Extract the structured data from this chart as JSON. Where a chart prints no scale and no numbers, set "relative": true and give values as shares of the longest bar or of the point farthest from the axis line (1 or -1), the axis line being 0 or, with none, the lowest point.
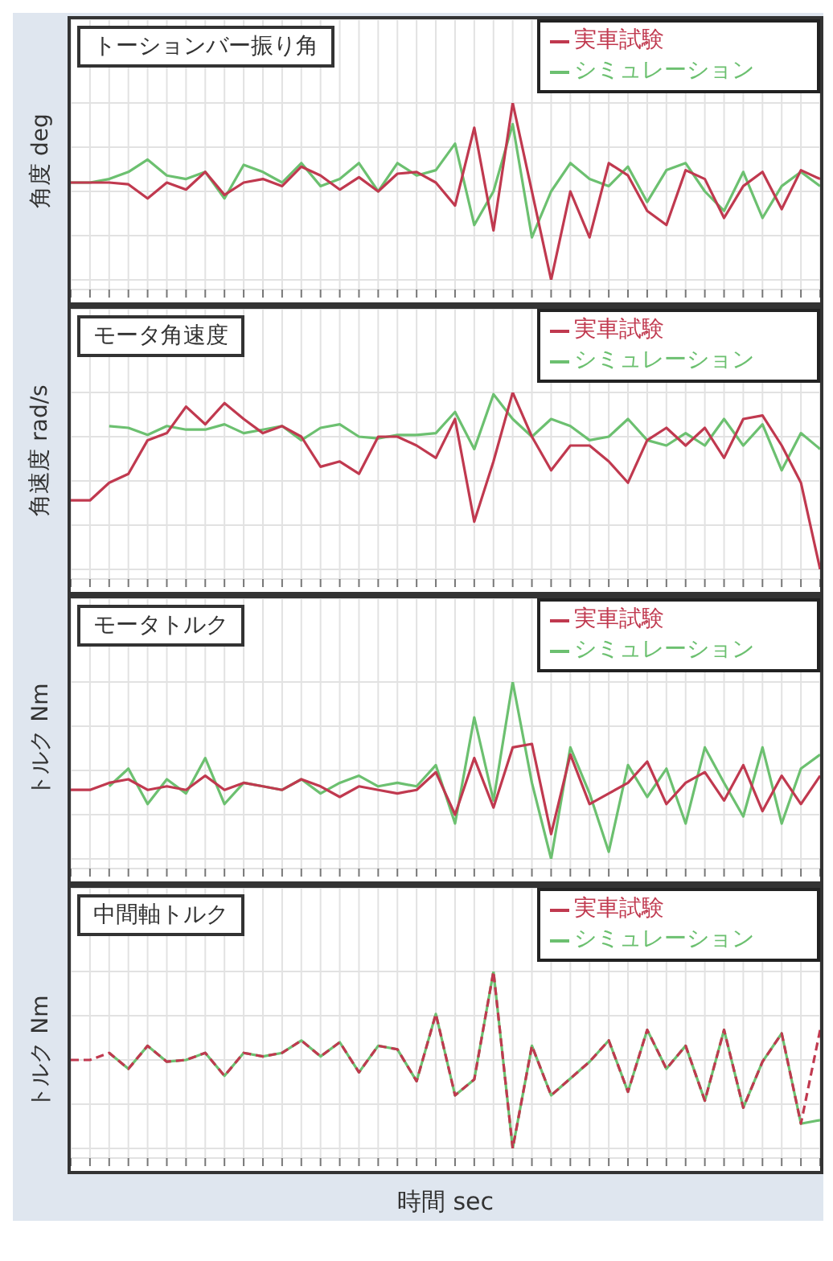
{
  "chart_data": [
    {
      "type": "line",
      "title": "トーションバー振り角",
      "ylabel": "角度 deg",
      "relative": true,
      "grid": true,
      "legend": "top right",
      "categories": [
        null,
        null,
        null,
        null,
        null,
        null,
        null,
        null,
        null,
        null,
        null,
        null,
        null,
        null,
        null,
        null,
        null,
        null,
        null,
        null,
        null,
        null,
        null,
        null,
        null,
        null,
        null,
        null,
        null,
        null,
        null,
        null,
        null,
        null,
        null,
        null,
        null,
        null,
        null,
        null
      ],
      "series": [
        {
          "name": "実車試験",
          "color": "#c0394f",
          "values": [
            0.55,
            0.55,
            0.55,
            0.54,
            0.46,
            0.55,
            0.51,
            0.61,
            0.48,
            0.55,
            0.57,
            0.53,
            0.64,
            0.59,
            0.51,
            0.58,
            0.5,
            0.6,
            0.61,
            0.55,
            0.42,
            0.86,
            0.28,
            1,
            null,
            0,
            0.5,
            0.24,
            0.66,
            0.59,
            0.39,
            0.31,
            0.62,
            0.57,
            0.35,
            0.53,
            0.61,
            0.4,
            0.62,
            0.57
          ]
        },
        {
          "name": "シミュレーション",
          "color": "#6cc070",
          "values": [
            0.55,
            0.55,
            0.57,
            0.61,
            0.68,
            0.59,
            0.57,
            0.61,
            0.46,
            0.65,
            0.61,
            0.55,
            0.66,
            0.53,
            0.57,
            0.66,
            0.5,
            0.66,
            0.59,
            0.62,
            0.77,
            0.31,
            0.5,
            0.88,
            0.24,
            0.5,
            0.66,
            0.57,
            0.53,
            0.64,
            0.44,
            0.62,
            0.66,
            0.5,
            0.39,
            0.61,
            0.35,
            0.53,
            0.61,
            0.53
          ]
        }
      ]
    },
    {
      "type": "line",
      "title": "モータ角速度",
      "ylabel": "角速度 rad/s",
      "relative": true,
      "grid": true,
      "legend": "top right",
      "categories": [
        null,
        null,
        null,
        null,
        null,
        null,
        null,
        null,
        null,
        null,
        null,
        null,
        null,
        null,
        null,
        null,
        null,
        null,
        null,
        null,
        null,
        null,
        null,
        null,
        null,
        null,
        null,
        null,
        null,
        null,
        null,
        null,
        null,
        null,
        null,
        null,
        null,
        null,
        null,
        null
      ],
      "series": [
        {
          "name": "実車試験",
          "color": "#c0394f",
          "values": [
            0.39,
            0.39,
            0.49,
            0.54,
            0.73,
            0.77,
            0.92,
            0.82,
            0.94,
            0.85,
            0.77,
            0.81,
            0.75,
            0.58,
            0.61,
            0.54,
            0.75,
            0.75,
            0.7,
            0.63,
            0.85,
            0.27,
            0.61,
            1,
            0.75,
            0.56,
            0.7,
            0.7,
            0.61,
            0.49,
            0.73,
            0.8,
            0.7,
            0.8,
            0.63,
            0.85,
            0.87,
            0.7,
            0.49,
            0
          ]
        },
        {
          "name": "シミュレーション",
          "color": "#6cc070",
          "values": [
            null,
            null,
            0.81,
            0.8,
            0.76,
            0.81,
            0.79,
            0.79,
            0.82,
            0.77,
            0.79,
            0.81,
            0.73,
            0.8,
            0.82,
            0.75,
            0.74,
            0.76,
            0.76,
            0.77,
            0.89,
            0.68,
            0.99,
            0.85,
            0.75,
            0.85,
            0.81,
            0.73,
            0.75,
            0.85,
            0.73,
            0.7,
            0.77,
            0.7,
            0.85,
            0.7,
            0.82,
            0.56,
            0.77,
            0.68
          ]
        }
      ]
    },
    {
      "type": "line",
      "title": "モータトルク",
      "ylabel": "トルク Nm",
      "relative": true,
      "grid": true,
      "legend": "top right",
      "categories": [
        null,
        null,
        null,
        null,
        null,
        null,
        null,
        null,
        null,
        null,
        null,
        null,
        null,
        null,
        null,
        null,
        null,
        null,
        null,
        null,
        null,
        null,
        null,
        null,
        null,
        null,
        null,
        null,
        null,
        null,
        null,
        null,
        null,
        null,
        null,
        null,
        null,
        null,
        null,
        null
      ],
      "series": [
        {
          "name": "実車試験",
          "color": "#c0394f",
          "values": [
            0.39,
            0.39,
            0.43,
            0.45,
            0.39,
            0.41,
            0.39,
            0.47,
            0.39,
            0.43,
            0.41,
            0.39,
            0.45,
            0.41,
            0.35,
            0.41,
            0.39,
            0.37,
            0.39,
            0.49,
            0.25,
            0.57,
            0.29,
            0.63,
            0.65,
            0.14,
            0.59,
            0.31,
            0.37,
            0.43,
            0.55,
            0.31,
            0.43,
            0.49,
            0.33,
            0.53,
            0.27,
            0.47,
            0.31,
            0.47
          ]
        },
        {
          "name": "シミュレーション",
          "color": "#6cc070",
          "values": [
            null,
            null,
            0.41,
            0.51,
            0.31,
            0.45,
            0.37,
            0.57,
            0.31,
            0.43,
            0.41,
            0.39,
            0.45,
            0.37,
            0.43,
            0.47,
            0.41,
            0.43,
            0.41,
            0.53,
            0.2,
            0.8,
            0.33,
            1,
            0.43,
            0,
            0.63,
            0.37,
            0.04,
            0.53,
            0.35,
            0.51,
            0.2,
            0.63,
            0.43,
            0.24,
            0.63,
            0.2,
            0.51,
            0.59
          ]
        }
      ]
    },
    {
      "type": "line",
      "title": "中間軸トルク",
      "ylabel": "トルク Nm",
      "xlabel": "時間 sec",
      "relative": true,
      "grid": true,
      "legend": "top right",
      "categories": [
        null,
        null,
        null,
        null,
        null,
        null,
        null,
        null,
        null,
        null,
        null,
        null,
        null,
        null,
        null,
        null,
        null,
        null,
        null,
        null,
        null,
        null,
        null,
        null,
        null,
        null,
        null,
        null,
        null,
        null,
        null,
        null,
        null,
        null,
        null,
        null,
        null,
        null,
        null,
        null
      ],
      "series": [
        {
          "name": "実車試験",
          "color": "#c0394f",
          "line_style": "dashed",
          "values": [
            0.5,
            0.5,
            0.54,
            0.45,
            0.58,
            0.49,
            0.5,
            0.54,
            0.41,
            0.54,
            0.52,
            0.54,
            0.61,
            0.52,
            0.6,
            0.43,
            0.58,
            0.56,
            0.38,
            0.76,
            0.3,
            0.39,
            1,
            0,
            0.58,
            0.3,
            null,
            0.49,
            0.61,
            0.32,
            0.67,
            0.45,
            0.58,
            0.27,
            0.67,
            0.23,
            0.49,
            0.65,
            0.14,
            0.67
          ]
        },
        {
          "name": "シミュレーション",
          "color": "#6cc070",
          "values": [
            null,
            null,
            0.54,
            0.45,
            0.58,
            0.49,
            0.5,
            0.54,
            0.41,
            0.54,
            0.52,
            0.54,
            0.61,
            0.52,
            0.6,
            0.43,
            0.58,
            0.56,
            0.38,
            0.76,
            0.3,
            0.39,
            1,
            0,
            0.58,
            0.3,
            null,
            0.49,
            0.61,
            0.32,
            0.67,
            0.45,
            0.58,
            0.27,
            0.67,
            0.23,
            0.49,
            0.65,
            0.14,
            0.16
          ]
        }
      ]
    }
  ]
}
